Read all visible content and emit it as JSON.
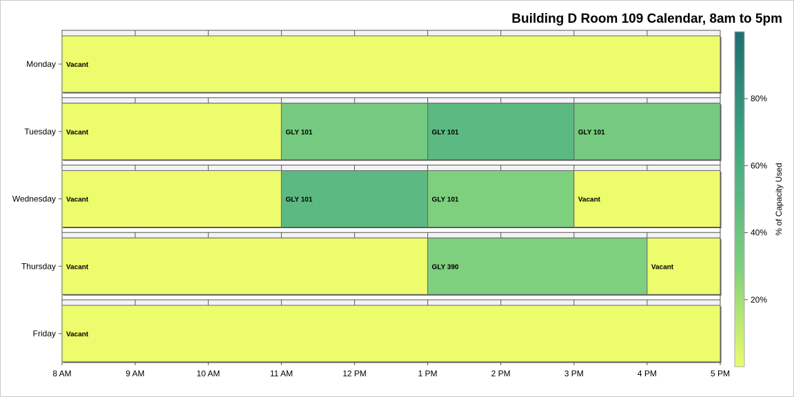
{
  "chart_data": {
    "type": "bar",
    "subtype": "schedule-timeline",
    "title": "Building D Room 109 Calendar, 8am to 5pm",
    "xlabel": "",
    "ylabel": "",
    "x_ticks": [
      "8 AM",
      "9 AM",
      "10 AM",
      "11 AM",
      "12 PM",
      "1 PM",
      "2 PM",
      "3 PM",
      "4 PM",
      "5 PM"
    ],
    "xlim": [
      8,
      17
    ],
    "categories": [
      "Monday",
      "Tuesday",
      "Wednesday",
      "Thursday",
      "Friday"
    ],
    "colorbar": {
      "label": "% of Capacity Used",
      "ticks": [
        "20%",
        "40%",
        "60%",
        "80%"
      ],
      "tick_values": [
        20,
        40,
        60,
        80
      ],
      "range": [
        0,
        100
      ],
      "colors": [
        "#ecfc6c",
        "#7ed07e",
        "#42a883",
        "#1f6e72"
      ]
    },
    "segments": [
      {
        "day": "Monday",
        "start": 8,
        "end": 17,
        "label": "Vacant",
        "capacity_pct": 0
      },
      {
        "day": "Tuesday",
        "start": 8,
        "end": 11,
        "label": "Vacant",
        "capacity_pct": 0
      },
      {
        "day": "Tuesday",
        "start": 11,
        "end": 13,
        "label": "GLY 101",
        "capacity_pct": 35
      },
      {
        "day": "Tuesday",
        "start": 13,
        "end": 15,
        "label": "GLY 101",
        "capacity_pct": 50
      },
      {
        "day": "Tuesday",
        "start": 15,
        "end": 17,
        "label": "GLY 101",
        "capacity_pct": 35
      },
      {
        "day": "Wednesday",
        "start": 8,
        "end": 11,
        "label": "Vacant",
        "capacity_pct": 0
      },
      {
        "day": "Wednesday",
        "start": 11,
        "end": 13,
        "label": "GLY 101",
        "capacity_pct": 50
      },
      {
        "day": "Wednesday",
        "start": 13,
        "end": 15,
        "label": "GLY 101",
        "capacity_pct": 30
      },
      {
        "day": "Wednesday",
        "start": 15,
        "end": 17,
        "label": "Vacant",
        "capacity_pct": 0
      },
      {
        "day": "Thursday",
        "start": 8,
        "end": 13,
        "label": "Vacant",
        "capacity_pct": 0
      },
      {
        "day": "Thursday",
        "start": 13,
        "end": 16,
        "label": "GLY 390",
        "capacity_pct": 30
      },
      {
        "day": "Thursday",
        "start": 16,
        "end": 17,
        "label": "Vacant",
        "capacity_pct": 0
      },
      {
        "day": "Friday",
        "start": 8,
        "end": 17,
        "label": "Vacant",
        "capacity_pct": 0
      }
    ]
  }
}
